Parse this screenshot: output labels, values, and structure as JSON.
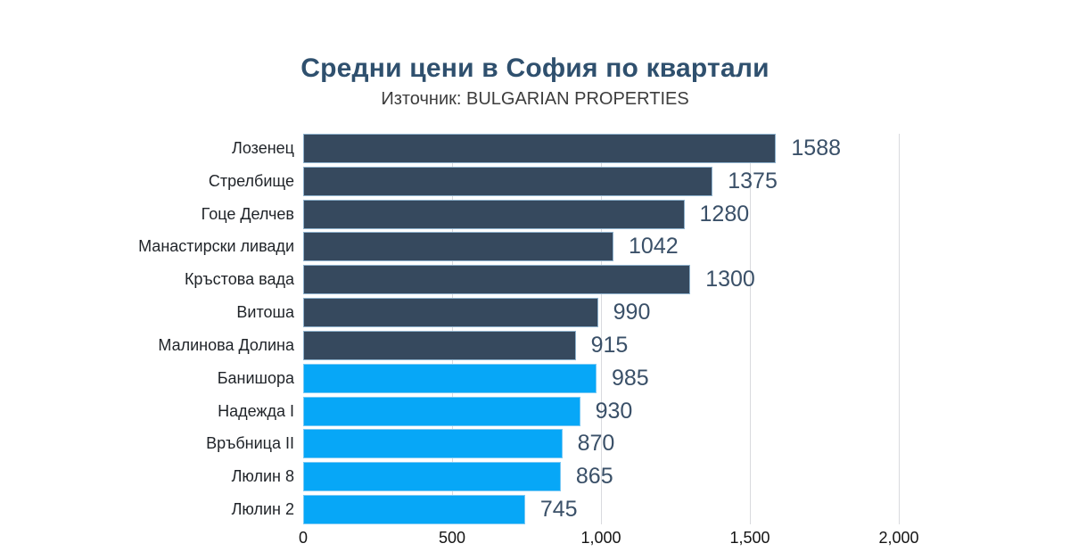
{
  "header": {
    "title": "Средни цени в София по квартали",
    "subtitle": "Източник: BULGARIAN PROPERTIES"
  },
  "chart_data": {
    "type": "bar",
    "orientation": "horizontal",
    "title": "Средни цени в София по квартали",
    "subtitle": "Източник: BULGARIAN PROPERTIES",
    "categories": [
      "Лозенец",
      "Стрелбище",
      "Гоце Делчев",
      "Манастирски ливади",
      "Кръстова вада",
      "Витоша",
      "Малинова Долина",
      "Банишора",
      "Надежда I",
      "Връбница II",
      "Люлин 8",
      "Люлин 2"
    ],
    "values": [
      1588,
      1375,
      1280,
      1042,
      1300,
      990,
      915,
      985,
      930,
      870,
      865,
      745
    ],
    "bar_groups": [
      "dark",
      "dark",
      "dark",
      "dark",
      "dark",
      "dark",
      "dark",
      "light",
      "light",
      "light",
      "light",
      "light"
    ],
    "colors": {
      "dark_bar": "#36495e",
      "light_bar": "#07a7f7",
      "gridline": "#d9dade",
      "title": "#2f506e",
      "value_label": "#3a5068"
    },
    "x_axis": {
      "tick_labels": [
        "0",
        "500",
        "1,000",
        "1,500",
        "2,000"
      ],
      "tick_values": [
        0,
        500,
        1000,
        1500,
        2000
      ],
      "max": 2000
    },
    "grid": "vertical-only",
    "legend": "none",
    "value_labels": true
  }
}
